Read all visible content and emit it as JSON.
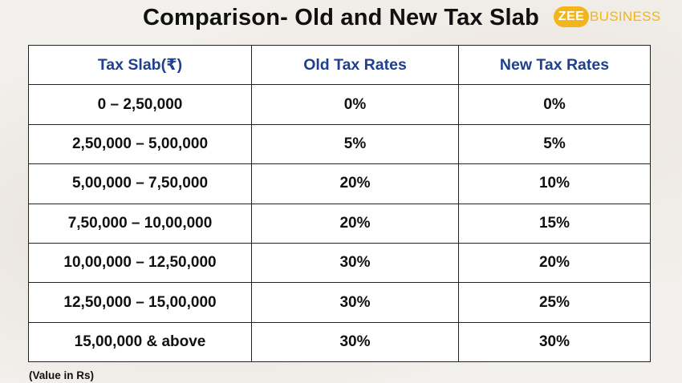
{
  "title": "Comparison- Old and New Tax Slab",
  "logo": {
    "part1": "ZEE",
    "part2": "BUSINESS",
    "color": "#f2b51c"
  },
  "table": {
    "headers": [
      "Tax Slab(₹)",
      "Old Tax Rates",
      "New Tax Rates"
    ],
    "rows": [
      [
        "0 – 2,50,000",
        "0%",
        "0%"
      ],
      [
        "2,50,000 – 5,00,000",
        "5%",
        "5%"
      ],
      [
        "5,00,000 – 7,50,000",
        "20%",
        "10%"
      ],
      [
        "7,50,000 – 10,00,000",
        "20%",
        "15%"
      ],
      [
        "10,00,000 – 12,50,000",
        "30%",
        "20%"
      ],
      [
        "12,50,000 – 15,00,000",
        "30%",
        "25%"
      ],
      [
        "15,00,000 & above",
        "30%",
        "30%"
      ]
    ]
  },
  "note": "(Value in Rs)",
  "colors": {
    "header_text": "#1f3f8f",
    "border": "#222222"
  }
}
